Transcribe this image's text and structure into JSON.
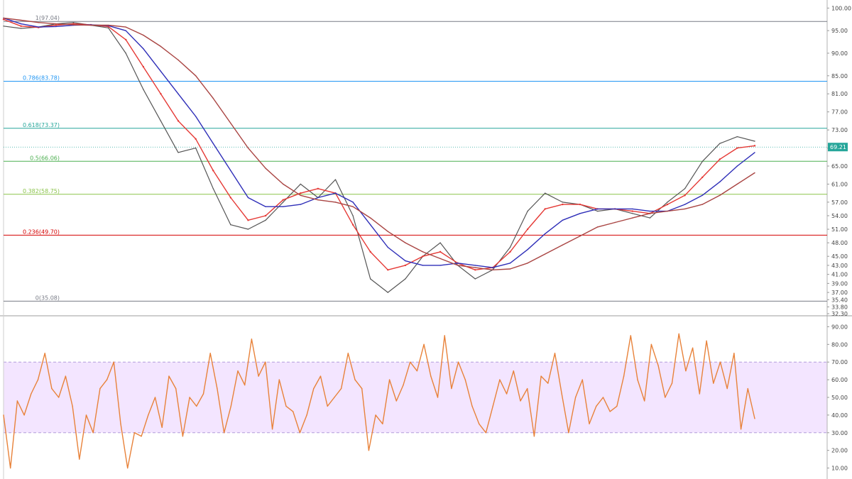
{
  "chart_data": [
    {
      "type": "line",
      "title": "",
      "xlabel": "",
      "ylabel": "",
      "ylim": [
        32.3,
        101.0
      ],
      "y_ticks": [
        {
          "value": 100.0,
          "label": "100.00"
        },
        {
          "value": 95.0,
          "label": "95.00"
        },
        {
          "value": 90.0,
          "label": "90.00"
        },
        {
          "value": 85.0,
          "label": "85.00"
        },
        {
          "value": 81.0,
          "label": "81.00"
        },
        {
          "value": 77.0,
          "label": "77.00"
        },
        {
          "value": 73.0,
          "label": "73.00"
        },
        {
          "value": 69.0,
          "label": "69.00"
        },
        {
          "value": 65.0,
          "label": "65.00"
        },
        {
          "value": 61.0,
          "label": "61.00"
        },
        {
          "value": 57.0,
          "label": "57.00"
        },
        {
          "value": 54.0,
          "label": "54.00"
        },
        {
          "value": 51.0,
          "label": "51.00"
        },
        {
          "value": 48.0,
          "label": "48.00"
        },
        {
          "value": 45.0,
          "label": "45.00"
        },
        {
          "value": 43.0,
          "label": "43.00"
        },
        {
          "value": 41.0,
          "label": "41.00"
        },
        {
          "value": 39.0,
          "label": "39.00"
        },
        {
          "value": 37.0,
          "label": "37.00"
        },
        {
          "value": 35.4,
          "label": "35.40"
        },
        {
          "value": 33.8,
          "label": "33.80"
        },
        {
          "value": 32.3,
          "label": "32.30"
        }
      ],
      "last_price": {
        "value": 69.21,
        "label": "69.21",
        "color": "#26a69a"
      },
      "fib_levels": [
        {
          "value": 97.04,
          "label": "1(97.04)",
          "color": "#787b86"
        },
        {
          "value": 83.78,
          "label": "0.786(83.78)",
          "color": "#2196f3"
        },
        {
          "value": 73.37,
          "label": "0.618(73.37)",
          "color": "#26a69a"
        },
        {
          "value": 66.06,
          "label": "0.5(66.06)",
          "color": "#4caf50"
        },
        {
          "value": 58.75,
          "label": "0.382(58.75)",
          "color": "#8bc34a"
        },
        {
          "value": 49.7,
          "label": "0.236(49.70)",
          "color": "#d50000"
        },
        {
          "value": 35.08,
          "label": "0(35.08)",
          "color": "#787b86"
        }
      ],
      "series": [
        {
          "values": [
            96,
            95.5,
            95.8,
            96.5,
            96.8,
            96.2,
            95.6,
            90,
            82,
            75,
            68,
            69,
            60,
            52,
            51,
            53,
            57,
            61,
            58,
            62,
            54,
            40,
            37,
            40,
            45,
            48,
            43,
            40,
            42,
            47,
            55,
            59,
            57,
            56.5,
            55,
            55.5,
            54.5,
            53.5,
            57,
            60,
            66,
            70,
            71.5,
            70.5
          ],
          "color": "#555555"
        },
        {
          "values": [
            97.5,
            96,
            95.7,
            96.2,
            96.5,
            96.3,
            95.9,
            93,
            87,
            81,
            75,
            71,
            64,
            58,
            53,
            54,
            57.5,
            59,
            60,
            59,
            52,
            46,
            42,
            43,
            45,
            46,
            43.5,
            42,
            42.5,
            46,
            51,
            55.5,
            56.5,
            56.5,
            55.5,
            55.5,
            55,
            54.5,
            56.5,
            58.5,
            62.5,
            66.5,
            69,
            69.5
          ],
          "color": "#e53935"
        },
        {
          "values": [
            97.8,
            96.5,
            95.8,
            95.9,
            96.2,
            96.3,
            96.1,
            95,
            91,
            86,
            81,
            76,
            70,
            64,
            58,
            56,
            56,
            56.5,
            58,
            59,
            57,
            52,
            47,
            44,
            43,
            43,
            43.5,
            43,
            42.5,
            43.5,
            46.5,
            50,
            53,
            54.5,
            55.5,
            55.5,
            55.5,
            55,
            55,
            56.5,
            58.5,
            61.5,
            65,
            68
          ],
          "color": "#2e2eb8"
        },
        {
          "values": [
            97.8,
            97.3,
            96.8,
            96.5,
            96.3,
            96.2,
            96.2,
            95.8,
            94,
            91.5,
            88.5,
            85,
            80,
            74.5,
            69,
            64.5,
            61,
            58.5,
            57.5,
            57,
            56,
            53.5,
            50.5,
            48,
            46,
            44.5,
            43,
            42.5,
            42,
            42.2,
            43.5,
            45.5,
            47.5,
            49.5,
            51.5,
            52.5,
            53.5,
            54.5,
            55,
            55.5,
            56.5,
            58.5,
            61,
            63.5
          ],
          "color": "#a94442"
        }
      ]
    },
    {
      "type": "line",
      "title": "",
      "ylim": [
        5,
        95
      ],
      "y_ticks": [
        {
          "value": 90,
          "label": "90.00"
        },
        {
          "value": 80,
          "label": "80.00"
        },
        {
          "value": 70,
          "label": "70.00"
        },
        {
          "value": 60,
          "label": "60.00"
        },
        {
          "value": 50,
          "label": "50.00"
        },
        {
          "value": 40,
          "label": "40.00"
        },
        {
          "value": 30,
          "label": "30.00"
        },
        {
          "value": 20,
          "label": "20.00"
        },
        {
          "value": 10,
          "label": "10.00"
        }
      ],
      "bands": [
        {
          "from": 30,
          "to": 70,
          "fill": "#f3e5ff"
        }
      ],
      "series": [
        {
          "values": [
            40,
            10,
            48,
            40,
            52,
            60,
            75,
            55,
            50,
            62,
            45,
            15,
            40,
            30,
            55,
            60,
            70,
            35,
            10,
            30,
            28,
            40,
            50,
            33,
            62,
            55,
            28,
            50,
            45,
            52,
            75,
            55,
            30,
            45,
            65,
            57,
            83,
            62,
            70,
            32,
            60,
            45,
            42,
            30,
            40,
            55,
            62,
            45,
            50,
            55,
            75,
            60,
            55,
            20,
            40,
            35,
            60,
            48,
            57,
            70,
            65,
            80,
            62,
            50,
            85,
            55,
            70,
            60,
            45,
            35,
            30,
            45,
            60,
            52,
            65,
            48,
            55,
            28,
            62,
            58,
            75,
            52,
            30,
            50,
            60,
            35,
            45,
            50,
            42,
            45,
            62,
            85,
            60,
            48,
            80,
            68,
            50,
            58,
            86,
            65,
            78,
            52,
            82,
            58,
            70,
            55,
            75,
            32,
            55,
            38
          ],
          "color": "#e8823a"
        }
      ]
    }
  ]
}
